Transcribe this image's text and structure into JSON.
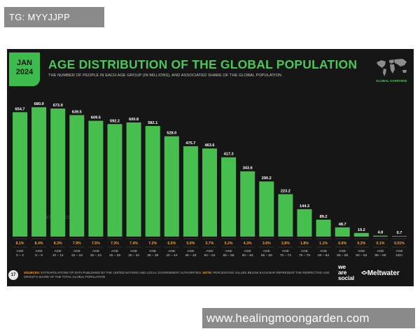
{
  "overlay_top": "TG: MYYJJPP",
  "overlay_bottom": "www.healingmoongarden.com",
  "slide": {
    "badge_month": "JAN",
    "badge_year": "2024",
    "page_number": "17",
    "global_overview_label": "GLOBAL OVERVIEW",
    "sources_label": "SOURCES:",
    "sources_text": " EXTRAPOLATIONS OF DATA PUBLISHED BY THE UNITED NATIONS AND LOCAL GOVERNMENT AUTHORITIES. ",
    "note_label": "NOTE:",
    "note_text": " PERCENTAGE VALUES BELOW EACH BAR REPRESENT THE RESPECTIVE AGE GROUP'S SHARE OF THE TOTAL GLOBAL POPULATION",
    "watermark": "DATAREPORTAL",
    "brand_1": [
      "we",
      "are",
      "social"
    ],
    "brand_2": "Meltwater"
  },
  "colors": {
    "bar": "#46bf4f",
    "accent_green": "#4cc55a",
    "percent": "#f0a030",
    "background": "#161616"
  },
  "chart_data": {
    "type": "bar",
    "title": "AGE DISTRIBUTION OF THE GLOBAL POPULATION",
    "subtitle": "THE NUMBER OF PEOPLE IN EACH AGE GROUP (IN MILLIONS), AND ASSOCIATED SHARE OF THE GLOBAL POPULATION",
    "unit": "millions",
    "categories": [
      "0 – 4",
      "5 – 9",
      "10 – 14",
      "15 – 19",
      "20 – 24",
      "25 – 29",
      "30 – 34",
      "35 – 39",
      "40 – 44",
      "45 – 49",
      "50 – 54",
      "55 – 59",
      "60 – 64",
      "65 – 69",
      "70 – 74",
      "75 – 79",
      "80 – 84",
      "85 – 89",
      "90 – 94",
      "95 – 99",
      "100+"
    ],
    "category_prefix": "AGE",
    "values": [
      654.7,
      680.9,
      673.9,
      639.5,
      609.5,
      592.2,
      600.8,
      582.1,
      528.0,
      475.7,
      463.6,
      417.3,
      343.6,
      290.2,
      223.2,
      144.3,
      89.2,
      48.7,
      19.2,
      4.8,
      0.7
    ],
    "value_labels": [
      "654.7",
      "680.9",
      "673.9",
      "639.5",
      "609.5",
      "592.2",
      "600.8",
      "582.1",
      "528.0",
      "475.7",
      "463.6",
      "417.3",
      "343.6",
      "290.2",
      "223.2",
      "144.3",
      "89.2",
      "48.7",
      "19.2",
      "4.8",
      "0.7"
    ],
    "shares": [
      "8.1%",
      "8.4%",
      "8.3%",
      "7.9%",
      "7.5%",
      "7.3%",
      "7.4%",
      "7.2%",
      "6.5%",
      "5.9%",
      "5.7%",
      "5.2%",
      "4.3%",
      "3.6%",
      "2.8%",
      "1.8%",
      "1.1%",
      "0.6%",
      "0.2%",
      "0.1%",
      "0.01%"
    ],
    "ylim": [
      0,
      700
    ],
    "grid": false,
    "legend": "none"
  }
}
